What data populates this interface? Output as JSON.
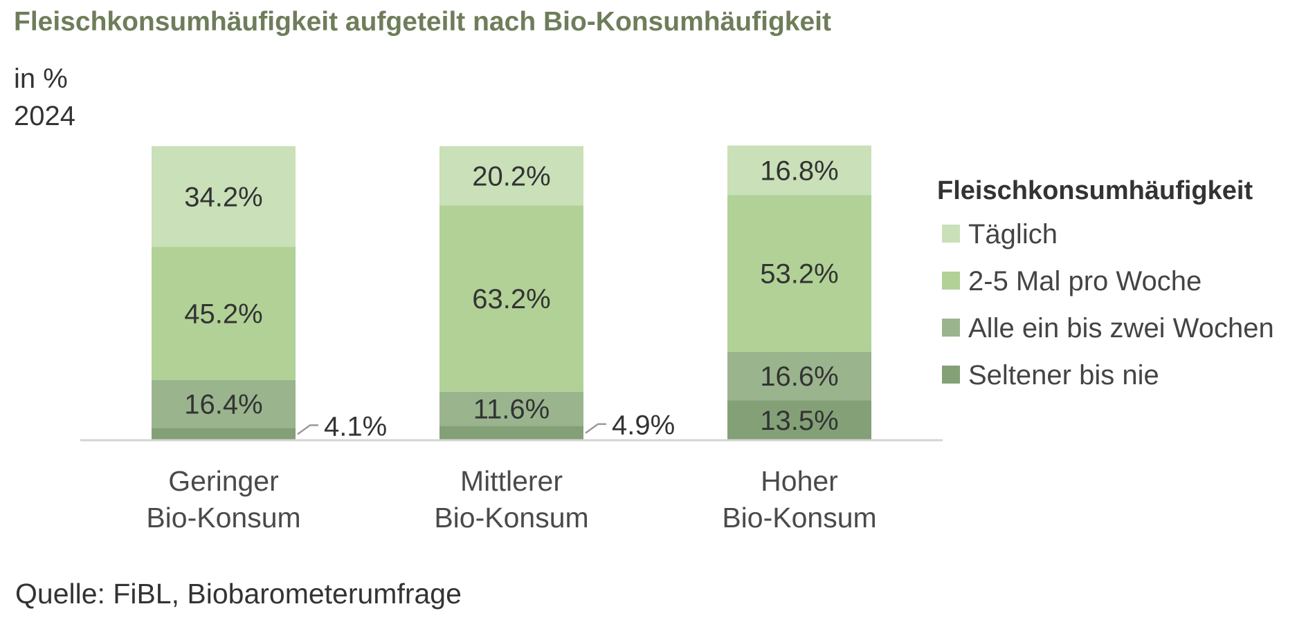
{
  "title": "Fleischkonsumhäufigkeit aufgeteilt nach Bio-Konsumhäufigkeit",
  "unit": "in %",
  "year": "2024",
  "source": "Quelle: FiBL, Biobarometerumfrage",
  "colors": {
    "title": "#6e7d5a",
    "Täglich": "#c9e0b8",
    "2-5 Mal pro Woche": "#b1d196",
    "Alle ein bis zwei Wochen": "#9ab48e",
    "Seltener bis nie": "#84a077",
    "axis": "#d4d4d4"
  },
  "chart_data": {
    "type": "bar",
    "stacked": true,
    "categories": [
      [
        "Geringer",
        "Bio-Konsum"
      ],
      [
        "Mittlerer",
        "Bio-Konsum"
      ],
      [
        "Hoher",
        "Bio-Konsum"
      ]
    ],
    "series": [
      {
        "name": "Seltener bis nie",
        "values": [
          4.1,
          4.9,
          13.5
        ],
        "labels": [
          "4.1%",
          "4.9%",
          "13.5%"
        ]
      },
      {
        "name": "Alle ein bis zwei Wochen",
        "values": [
          16.4,
          11.6,
          16.6
        ],
        "labels": [
          "16.4%",
          "11.6%",
          "16.6%"
        ]
      },
      {
        "name": "2-5 Mal pro Woche",
        "values": [
          45.2,
          63.2,
          53.2
        ],
        "labels": [
          "45.2%",
          "63.2%",
          "53.2%"
        ]
      },
      {
        "name": "Täglich",
        "values": [
          34.2,
          20.2,
          16.8
        ],
        "labels": [
          "34.2%",
          "20.2%",
          "16.8%"
        ]
      }
    ],
    "legend": {
      "title": "Fleischkonsumhäufigkeit",
      "position": "right",
      "items": [
        "Täglich",
        "2-5 Mal pro Woche",
        "Alle ein bis zwei Wochen",
        "Seltener bis nie"
      ]
    },
    "ylim": [
      0,
      100
    ],
    "grid": false
  }
}
